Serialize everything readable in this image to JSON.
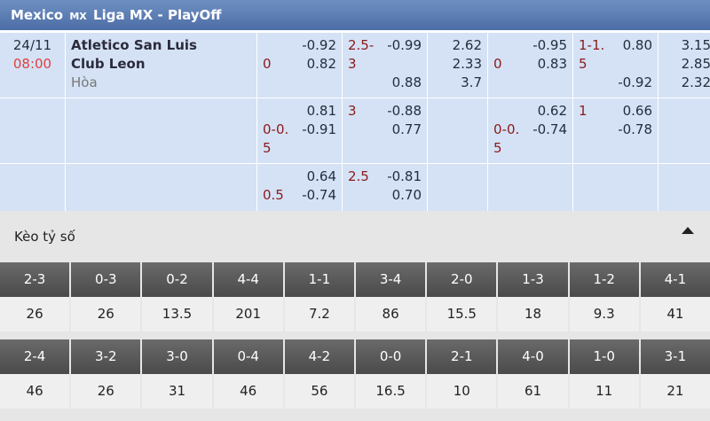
{
  "header": {
    "country": "Mexico",
    "badge": "MX",
    "league": "Liga MX - PlayOff"
  },
  "match": {
    "date": "24/11",
    "time": "08:00",
    "home": "Atletico San Luis",
    "away": "Club Leon",
    "draw": "Hòa"
  },
  "odds_rows": [
    {
      "ft_handicap": {
        "home": "-0.92",
        "line": "0",
        "away": "0.82"
      },
      "ft_over_under": {
        "line": "2.5-3",
        "over": "-0.99",
        "under": "0.88"
      },
      "ft_1x2": [
        "2.62",
        "2.33",
        "3.7"
      ],
      "h1_handicap": {
        "home": "-0.95",
        "line": "0",
        "away": "0.83"
      },
      "h1_over_under": {
        "line": "1-1.5",
        "over": "0.80",
        "under": "-0.92"
      },
      "h1_1x2": [
        "3.15",
        "2.85",
        "2.32"
      ]
    },
    {
      "ft_handicap": {
        "home": "0.81",
        "line": "0-0.5",
        "away": "-0.91"
      },
      "ft_over_under": {
        "line": "3",
        "over": "-0.88",
        "under": "0.77"
      },
      "h1_handicap": {
        "home": "0.62",
        "line": "0-0.5",
        "away": "-0.74"
      },
      "h1_over_under": {
        "line": "1",
        "over": "0.66",
        "under": "-0.78"
      }
    },
    {
      "ft_handicap": {
        "home": "0.64",
        "line": "0.5",
        "away": "-0.74"
      },
      "ft_over_under": {
        "line": "2.5",
        "over": "-0.81",
        "under": "0.70"
      }
    }
  ],
  "correct_score": {
    "title": "Kèo tỷ số",
    "rows": [
      [
        {
          "score": "2-3",
          "odds": "26"
        },
        {
          "score": "0-3",
          "odds": "26"
        },
        {
          "score": "0-2",
          "odds": "13.5"
        },
        {
          "score": "4-4",
          "odds": "201"
        },
        {
          "score": "1-1",
          "odds": "7.2"
        },
        {
          "score": "3-4",
          "odds": "86"
        },
        {
          "score": "2-0",
          "odds": "15.5"
        },
        {
          "score": "1-3",
          "odds": "18"
        },
        {
          "score": "1-2",
          "odds": "9.3"
        },
        {
          "score": "4-1",
          "odds": "41"
        }
      ],
      [
        {
          "score": "2-4",
          "odds": "46"
        },
        {
          "score": "3-2",
          "odds": "26"
        },
        {
          "score": "3-0",
          "odds": "31"
        },
        {
          "score": "0-4",
          "odds": "46"
        },
        {
          "score": "4-2",
          "odds": "56"
        },
        {
          "score": "0-0",
          "odds": "16.5"
        },
        {
          "score": "2-1",
          "odds": "10"
        },
        {
          "score": "4-0",
          "odds": "61"
        },
        {
          "score": "1-0",
          "odds": "11"
        },
        {
          "score": "3-1",
          "odds": "21"
        }
      ]
    ]
  }
}
